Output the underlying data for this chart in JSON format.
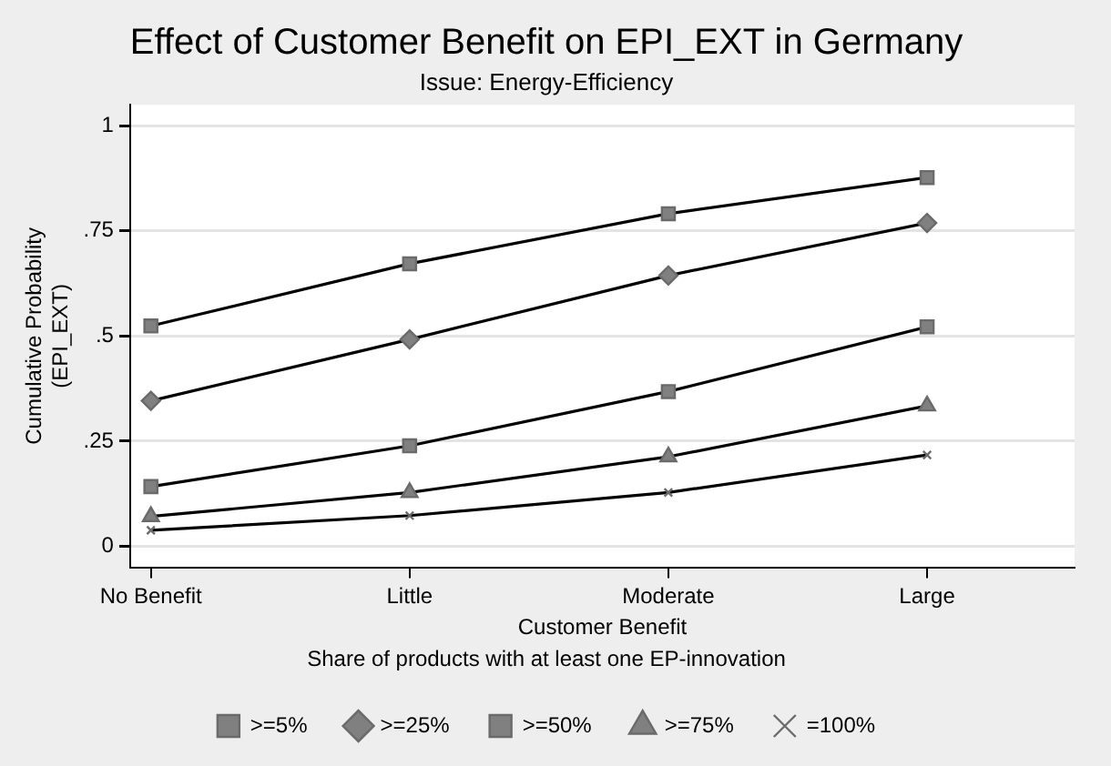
{
  "chart_data": {
    "type": "line",
    "title": "Effect of Customer Benefit on EPI_EXT in Germany",
    "subtitle": "Issue: Energy-Efficiency",
    "xlabel": "Customer Benefit",
    "ylabel": "Cumulative Probability (EPI_EXT)",
    "legend_title": "Share of products with at least one EP-innovation",
    "categories": [
      "No Benefit",
      "Little",
      "Moderate",
      "Large"
    ],
    "ylim": [
      -0.05,
      1.05
    ],
    "yticks": [
      {
        "value": 0,
        "label": "0"
      },
      {
        "value": 0.25,
        "label": ".25"
      },
      {
        "value": 0.5,
        "label": ".5"
      },
      {
        "value": 0.75,
        "label": ".75"
      },
      {
        "value": 1,
        "label": "1"
      }
    ],
    "grid": "y",
    "legend": "bottom",
    "series": [
      {
        "name": ">=5%",
        "color": "#000000",
        "marker": "square",
        "values": [
          0.524,
          0.672,
          0.791,
          0.877
        ]
      },
      {
        "name": ">=25%",
        "color": "#000000",
        "marker": "diamond",
        "values": [
          0.346,
          0.492,
          0.644,
          0.769
        ]
      },
      {
        "name": ">=50%",
        "color": "#000000",
        "marker": "square",
        "values": [
          0.142,
          0.239,
          0.368,
          0.522
        ]
      },
      {
        "name": ">=75%",
        "color": "#000000",
        "marker": "triangle",
        "values": [
          0.071,
          0.128,
          0.213,
          0.334
        ]
      },
      {
        "name": "=100%",
        "color": "#000000",
        "marker": "cross",
        "values": [
          0.038,
          0.073,
          0.128,
          0.217
        ]
      }
    ]
  }
}
